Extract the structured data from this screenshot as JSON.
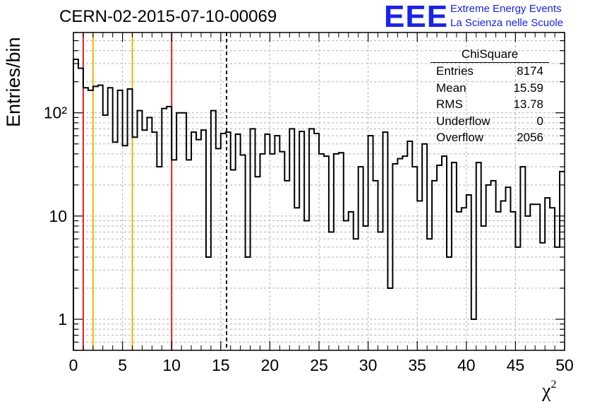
{
  "plot_title": "CERN-02-2015-07-10-00069",
  "logo": {
    "mark": "EEE",
    "line1": "Extreme Energy Events",
    "line2": "La Scienza nelle Scuole",
    "color": "#1a23e6"
  },
  "stats_box": {
    "title": "ChiSquare",
    "rows": [
      {
        "label": "Entries",
        "value": "8174"
      },
      {
        "label": "Mean",
        "value": "15.59"
      },
      {
        "label": "RMS",
        "value": "13.78"
      },
      {
        "label": "Underflow",
        "value": "0"
      },
      {
        "label": "Overflow",
        "value": "2056"
      }
    ]
  },
  "chart_data": {
    "type": "histogram",
    "title": "CERN-02-2015-07-10-00069",
    "xlabel": "χ²",
    "ylabel": "Entries/bin",
    "xlim": [
      0,
      50
    ],
    "ylim": [
      0.5,
      600
    ],
    "yscale": "log",
    "grid": true,
    "bin_width": 0.5,
    "xticks": [
      0,
      5,
      10,
      15,
      20,
      25,
      30,
      35,
      40,
      45,
      50
    ],
    "yticks": [
      {
        "value": 1,
        "label": "1"
      },
      {
        "value": 10,
        "label": "10"
      },
      {
        "value": 100,
        "label": "10²"
      }
    ],
    "values": [
      330,
      270,
      175,
      165,
      180,
      185,
      95,
      175,
      52,
      165,
      48,
      170,
      58,
      105,
      68,
      90,
      65,
      30,
      110,
      115,
      35,
      100,
      100,
      35,
      65,
      55,
      68,
      4,
      105,
      45,
      63,
      65,
      28,
      62,
      39,
      4,
      70,
      24,
      40,
      62,
      40,
      60,
      42,
      22,
      70,
      12,
      66,
      9,
      70,
      63,
      40,
      38,
      7,
      40,
      41,
      9,
      11,
      6,
      30,
      8,
      60,
      22,
      7,
      65,
      2,
      32,
      36,
      38,
      53,
      30,
      14,
      50,
      6,
      22,
      31,
      38,
      4,
      33,
      11,
      12,
      16,
      1,
      33,
      8,
      20,
      22,
      11,
      14,
      19,
      11,
      5,
      30,
      10,
      13,
      13,
      5.5,
      15,
      12,
      5,
      27
    ],
    "vertical_lines": [
      {
        "x": 1,
        "color": "#dd2222",
        "style": "solid"
      },
      {
        "x": 2,
        "color": "#f0b400",
        "style": "solid"
      },
      {
        "x": 6,
        "color": "#f0b400",
        "style": "solid"
      },
      {
        "x": 10,
        "color": "#dd2222",
        "style": "solid"
      },
      {
        "x": 15.59,
        "color": "#000000",
        "style": "dashed"
      }
    ],
    "line_color": "#000000",
    "grid_color": "#b0b0b0"
  }
}
